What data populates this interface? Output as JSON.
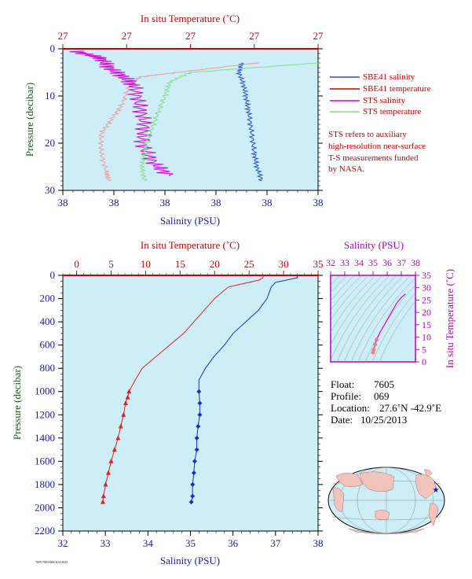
{
  "colors": {
    "panel_bg": "#cdeef7",
    "red": "#cc0000",
    "blue": "#1a1aa0",
    "magenta": "#bb00bb",
    "green": "#1a5a1a",
    "sbe_salinity": "#2a4fd0",
    "sbe_temperature": "#f09a9a",
    "sts_salinity": "#d400d4",
    "sts_temperature": "#88dd88",
    "deep_temperature": "#dd2222",
    "deep_salinity": "#1a2ad0"
  },
  "top_panel": {
    "top_axis_title": "In situ Temperature (˚C)",
    "top_ticks": [
      "27",
      "27",
      "27",
      "27",
      "27"
    ],
    "bottom_axis_title": "Salinity (PSU)",
    "bottom_ticks": [
      "38",
      "38",
      "38",
      "38",
      "38",
      "38"
    ],
    "left_axis_title": "Pressure (decibar)",
    "left_ticks": [
      "0",
      "10",
      "20",
      "30"
    ],
    "legend": [
      {
        "label": "SBE41 salinity",
        "color": "#2a4fd0"
      },
      {
        "label": "SBE41 temperature",
        "color": "#cc0000"
      },
      {
        "label": "STS salinity",
        "color": "#d400d4"
      },
      {
        "label": "STS temperature",
        "color": "#88dd88"
      }
    ],
    "note_lines": [
      "STS refers to auxiliary",
      "high-resolution near-surface",
      "T-S measurements funded",
      "by NASA."
    ]
  },
  "main_panel": {
    "top_axis_title": "In situ Temperature (˚C)",
    "top_ticks": [
      "0",
      "5",
      "10",
      "15",
      "20",
      "25",
      "30",
      "35"
    ],
    "bottom_axis_title": "Salinity (PSU)",
    "bottom_ticks": [
      "32",
      "33",
      "34",
      "35",
      "36",
      "37",
      "38"
    ],
    "left_axis_title": "Pressure (decibar)",
    "left_ticks": [
      "0",
      "200",
      "400",
      "600",
      "800",
      "1000",
      "1200",
      "1400",
      "1600",
      "1800",
      "2000",
      "2200"
    ]
  },
  "ts_panel": {
    "top_axis_title": "Salinity (PSU)",
    "top_ticks": [
      "32",
      "33",
      "34",
      "35",
      "36",
      "37",
      "38"
    ],
    "right_axis_title": "In situ Temperature (˚C)",
    "right_ticks": [
      "35",
      "30",
      "25",
      "20",
      "15",
      "10",
      "5",
      "0"
    ]
  },
  "info": {
    "float_label": "Float:",
    "float_value": "7605",
    "profile_label": "Profile:",
    "profile_value": "069",
    "location_label": "Location:",
    "location_value": "27.6˚N  -42.9˚E",
    "date_label": "Date:",
    "date_value": "10/25/2013"
  },
  "footer_tiny": "7605/7605/069/20131025",
  "chart_data": [
    {
      "type": "line",
      "title": "",
      "top_axis": {
        "label": "In situ Temperature (˚C)"
      },
      "bottom_axis": {
        "label": "Salinity (PSU)"
      },
      "ylabel": "Pressure (decibar)",
      "ylim": [
        30,
        0
      ],
      "series": [
        {
          "name": "SBE41 salinity",
          "x_axis": "salinity_frac",
          "points": [
            [
              0.7,
              3
            ],
            [
              0.69,
              5
            ],
            [
              0.71,
              8
            ],
            [
              0.72,
              11
            ],
            [
              0.73,
              14
            ],
            [
              0.74,
              18
            ],
            [
              0.75,
              22
            ],
            [
              0.76,
              25
            ],
            [
              0.78,
              28
            ]
          ]
        },
        {
          "name": "SBE41 temperature",
          "x_axis": "temperature_frac",
          "points": [
            [
              0.76,
              3
            ],
            [
              0.45,
              5
            ],
            [
              0.3,
              6
            ],
            [
              0.26,
              8
            ],
            [
              0.23,
              12
            ],
            [
              0.19,
              15
            ],
            [
              0.15,
              18
            ],
            [
              0.15,
              22
            ],
            [
              0.17,
              26
            ],
            [
              0.18,
              28
            ]
          ]
        },
        {
          "name": "STS salinity",
          "x_axis": "salinity_frac",
          "points": [
            [
              0.05,
              0.5
            ],
            [
              0.15,
              2
            ],
            [
              0.18,
              4
            ],
            [
              0.24,
              6
            ],
            [
              0.28,
              8
            ],
            [
              0.3,
              12
            ],
            [
              0.32,
              16
            ],
            [
              0.31,
              20
            ],
            [
              0.35,
              24
            ],
            [
              0.42,
              27
            ]
          ]
        },
        {
          "name": "STS temperature",
          "x_axis": "temperature_frac",
          "points": [
            [
              1.0,
              3
            ],
            [
              0.5,
              5
            ],
            [
              0.42,
              7
            ],
            [
              0.4,
              10
            ],
            [
              0.37,
              14
            ],
            [
              0.34,
              18
            ],
            [
              0.32,
              22
            ],
            [
              0.31,
              25
            ],
            [
              0.32,
              28
            ]
          ]
        }
      ]
    },
    {
      "type": "line",
      "title": "",
      "xlabel_top": "In situ Temperature (˚C)",
      "xlabel_bottom": "Salinity (PSU)",
      "ylabel": "Pressure (decibar)",
      "ylim": [
        2200,
        0
      ],
      "temperature_xlim": [
        -2,
        35
      ],
      "salinity_xlim": [
        32,
        38
      ],
      "series": [
        {
          "name": "temperature",
          "x_axis": "temperature",
          "points": [
            [
              27.1,
              0
            ],
            [
              27.0,
              20
            ],
            [
              26.5,
              40
            ],
            [
              25.0,
              60
            ],
            [
              22.0,
              100
            ],
            [
              20.0,
              200
            ],
            [
              18.5,
              300
            ],
            [
              17.0,
              400
            ],
            [
              15.5,
              500
            ],
            [
              13.5,
              600
            ],
            [
              11.5,
              700
            ],
            [
              9.5,
              800
            ],
            [
              8.5,
              900
            ],
            [
              7.6,
              1000
            ],
            [
              7.4,
              1050
            ],
            [
              7.1,
              1100
            ],
            [
              6.8,
              1200
            ],
            [
              6.4,
              1300
            ],
            [
              6.0,
              1400
            ],
            [
              5.5,
              1500
            ],
            [
              5.0,
              1600
            ],
            [
              4.6,
              1700
            ],
            [
              4.2,
              1800
            ],
            [
              3.9,
              1900
            ],
            [
              3.8,
              1950
            ]
          ]
        },
        {
          "name": "salinity",
          "x_axis": "salinity",
          "points": [
            [
              37.5,
              0
            ],
            [
              37.52,
              20
            ],
            [
              37.0,
              60
            ],
            [
              36.9,
              100
            ],
            [
              36.8,
              200
            ],
            [
              36.6,
              300
            ],
            [
              36.3,
              400
            ],
            [
              36.0,
              500
            ],
            [
              35.8,
              600
            ],
            [
              35.55,
              700
            ],
            [
              35.35,
              800
            ],
            [
              35.2,
              900
            ],
            [
              35.2,
              1000
            ],
            [
              35.22,
              1100
            ],
            [
              35.22,
              1200
            ],
            [
              35.18,
              1300
            ],
            [
              35.15,
              1400
            ],
            [
              35.15,
              1500
            ],
            [
              35.1,
              1600
            ],
            [
              35.08,
              1700
            ],
            [
              35.05,
              1800
            ],
            [
              35.05,
              1900
            ],
            [
              35.02,
              1950
            ]
          ]
        }
      ]
    },
    {
      "type": "line",
      "title": "",
      "xlabel": "Salinity (PSU)",
      "ylabel": "In situ Temperature (˚C)",
      "xlim": [
        32,
        38
      ],
      "ylim": [
        0,
        35
      ],
      "series": [
        {
          "name": "T-S",
          "points": [
            [
              35.0,
              3.8
            ],
            [
              35.05,
              5
            ],
            [
              35.15,
              7
            ],
            [
              35.25,
              9
            ],
            [
              35.5,
              12
            ],
            [
              35.8,
              15
            ],
            [
              36.1,
              18
            ],
            [
              36.4,
              21
            ],
            [
              36.7,
              24
            ],
            [
              37.0,
              26
            ],
            [
              37.3,
              27.5
            ]
          ]
        }
      ]
    }
  ]
}
